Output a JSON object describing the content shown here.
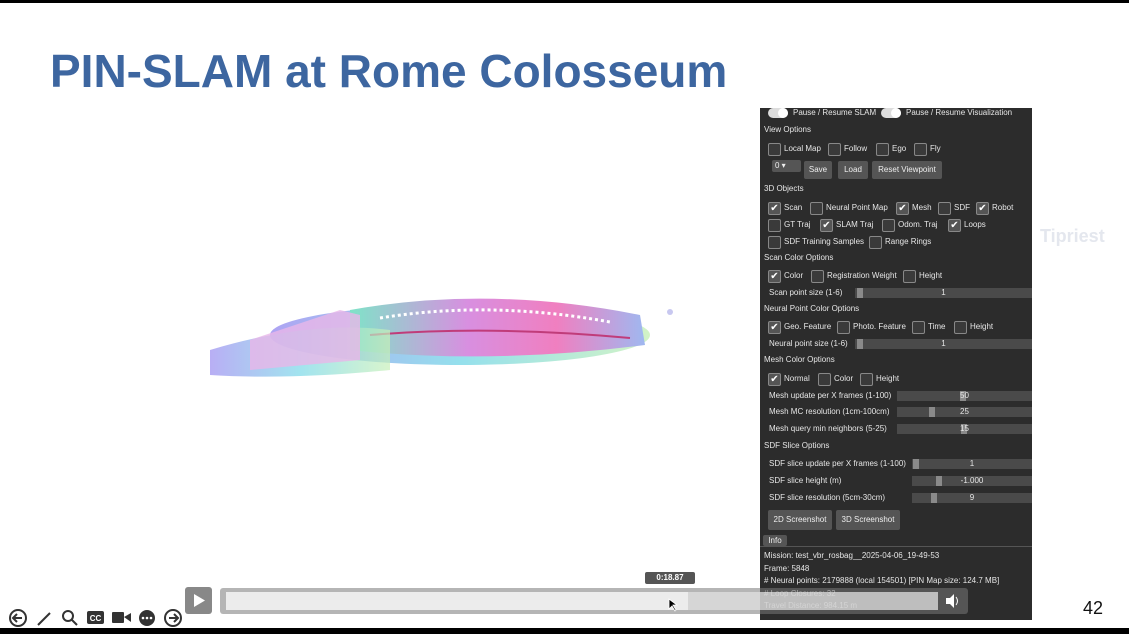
{
  "slide": {
    "title": "PIN-SLAM at Rome Colosseum",
    "page_number": "42",
    "watermark": "Tipriest"
  },
  "panel": {
    "toggles": [
      "Pause / Resume SLAM",
      "Pause / Resume Visualization"
    ],
    "view_options": {
      "heading": "View Options",
      "checkboxes": [
        {
          "label": "Local Map",
          "checked": false
        },
        {
          "label": "Follow",
          "checked": false
        },
        {
          "label": "Ego",
          "checked": false
        },
        {
          "label": "Fly",
          "checked": false
        }
      ],
      "dropdown": "0",
      "buttons": [
        "Save",
        "Load",
        "Reset Viewpoint"
      ]
    },
    "objects": {
      "heading": "3D Objects",
      "rows": [
        [
          {
            "label": "Scan",
            "checked": true
          },
          {
            "label": "Neural Point Map",
            "checked": false
          },
          {
            "label": "Mesh",
            "checked": true
          },
          {
            "label": "SDF",
            "checked": false
          },
          {
            "label": "Robot",
            "checked": true
          }
        ],
        [
          {
            "label": "GT Traj",
            "checked": false
          },
          {
            "label": "SLAM Traj",
            "checked": true
          },
          {
            "label": "Odom. Traj",
            "checked": false
          },
          {
            "label": "Loops",
            "checked": true
          }
        ],
        [
          {
            "label": "SDF Training Samples",
            "checked": false
          },
          {
            "label": "Range Rings",
            "checked": false
          }
        ]
      ]
    },
    "scan_color": {
      "heading": "Scan Color Options",
      "checkboxes": [
        {
          "label": "Color",
          "checked": true
        },
        {
          "label": "Registration Weight",
          "checked": false
        },
        {
          "label": "Height",
          "checked": false
        }
      ],
      "sliders": [
        {
          "label": "Scan point size (1-6)",
          "value": "1"
        }
      ]
    },
    "neural_color": {
      "heading": "Neural Point Color Options",
      "checkboxes": [
        {
          "label": "Geo. Feature",
          "checked": true
        },
        {
          "label": "Photo. Feature",
          "checked": false
        },
        {
          "label": "Time",
          "checked": false
        },
        {
          "label": "Height",
          "checked": false
        }
      ],
      "sliders": [
        {
          "label": "Neural point size (1-6)",
          "value": "1"
        }
      ]
    },
    "mesh_color": {
      "heading": "Mesh Color Options",
      "checkboxes": [
        {
          "label": "Normal",
          "checked": true
        },
        {
          "label": "Color",
          "checked": false
        },
        {
          "label": "Height",
          "checked": false
        }
      ],
      "sliders": [
        {
          "label": "Mesh update per X frames (1-100)",
          "value": "50"
        },
        {
          "label": "Mesh MC resolution (1cm-100cm)",
          "value": "25"
        },
        {
          "label": "Mesh query min neighbors (5-25)",
          "value": "15"
        }
      ]
    },
    "sdf_slice": {
      "heading": "SDF Slice Options",
      "sliders": [
        {
          "label": "SDF slice update per X frames (1-100)",
          "value": "1"
        },
        {
          "label": "SDF slice height (m)",
          "value": "-1.000"
        },
        {
          "label": "SDF slice resolution (5cm-30cm)",
          "value": "9"
        }
      ]
    },
    "screenshot_buttons": [
      "2D Screenshot",
      "3D Screenshot"
    ],
    "info_tab": "Info",
    "info_lines": [
      "Mission: test_vbr_rosbag__2025-04-06_19-49-53",
      "Frame: 5848",
      "# Neural points: 2179888 (local 154501) [PIN Map size: 124.7 MB]",
      "# Loop Closures: 32",
      "Travel Distance: 984.15 m"
    ]
  },
  "player": {
    "time": "0:18.87"
  }
}
